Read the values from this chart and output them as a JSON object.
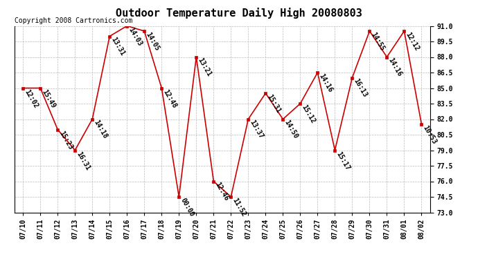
{
  "title": "Outdoor Temperature Daily High 20080803",
  "copyright": "Copyright 2008 Cartronics.com",
  "dates": [
    "07/10",
    "07/11",
    "07/12",
    "07/13",
    "07/14",
    "07/15",
    "07/16",
    "07/17",
    "07/18",
    "07/19",
    "07/20",
    "07/21",
    "07/22",
    "07/23",
    "07/24",
    "07/25",
    "07/26",
    "07/27",
    "07/28",
    "07/29",
    "07/30",
    "07/31",
    "08/01",
    "08/02"
  ],
  "temps": [
    85.0,
    85.0,
    81.0,
    79.0,
    82.0,
    90.0,
    91.0,
    90.5,
    85.0,
    74.5,
    88.0,
    76.0,
    74.5,
    82.0,
    84.5,
    82.0,
    83.5,
    86.5,
    79.0,
    86.0,
    90.5,
    88.0,
    90.5,
    81.5
  ],
  "times": [
    "12:02",
    "15:49",
    "15:23",
    "16:31",
    "14:18",
    "13:31",
    "14:03",
    "14:05",
    "12:48",
    "00:00",
    "13:21",
    "12:46",
    "11:52",
    "13:37",
    "15:31",
    "14:50",
    "15:12",
    "14:16",
    "15:17",
    "16:13",
    "14:55",
    "14:16",
    "12:12",
    "10:53"
  ],
  "ylim": [
    73.0,
    91.0
  ],
  "yticks": [
    73.0,
    74.5,
    76.0,
    77.5,
    79.0,
    80.5,
    82.0,
    83.5,
    85.0,
    86.5,
    88.0,
    89.5,
    91.0
  ],
  "line_color": "#cc0000",
  "marker_color": "#cc0000",
  "bg_color": "#ffffff",
  "grid_color": "#bbbbbb",
  "title_fontsize": 11,
  "tick_fontsize": 7,
  "label_fontsize": 7,
  "copyright_fontsize": 7
}
